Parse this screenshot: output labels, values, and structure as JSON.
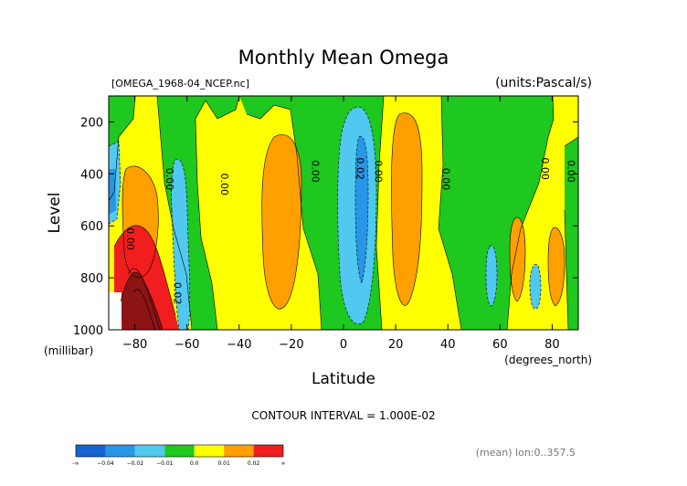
{
  "chart_data": {
    "type": "heatmap",
    "title": "Monthly Mean Omega",
    "file_label": "[OMEGA_1968-04_NCEP.nc]",
    "units_label": "(units:Pascal/s)",
    "xlabel": "Latitude",
    "xunits": "(degrees_north)",
    "ylabel": "Level",
    "yunits": "(millibar)",
    "xlim": [
      -90,
      90
    ],
    "ylim": [
      1000,
      100
    ],
    "x_ticks": [
      -80,
      -60,
      -40,
      -20,
      0,
      20,
      40,
      60,
      80
    ],
    "x_tick_labels": [
      "−80",
      "−60",
      "−40",
      "−20",
      "0",
      "20",
      "40",
      "60",
      "80"
    ],
    "y_ticks": [
      200,
      400,
      600,
      800,
      1000
    ],
    "y_tick_labels": [
      "200",
      "400",
      "600",
      "800",
      "1000"
    ],
    "contour_interval_label": "CONTOUR INTERVAL = 1.000E-02",
    "footer_label": "(mean) lon:0..357.5",
    "contour_line_labels": [
      {
        "text": "0.00",
        "lat": -68,
        "level": 420
      },
      {
        "text": "0.00",
        "lat": -47,
        "level": 440
      },
      {
        "text": "0.00",
        "lat": -12,
        "level": 390
      },
      {
        "text": "0.02",
        "lat": 5,
        "level": 380
      },
      {
        "text": "0.00",
        "lat": 12,
        "level": 390
      },
      {
        "text": "0.00",
        "lat": 38,
        "level": 420
      },
      {
        "text": "0.00",
        "lat": 76,
        "level": 380
      },
      {
        "text": "0.00",
        "lat": 86,
        "level": 390
      },
      {
        "text": "0.00",
        "lat": -83,
        "level": 650
      },
      {
        "text": "0.02",
        "lat": -65,
        "level": 860
      }
    ],
    "colorbar": {
      "colors": [
        "#1464d2",
        "#2896e6",
        "#50c8f0",
        "#1ec81e",
        "#ffff00",
        "#ffa000",
        "#f01e1e"
      ],
      "labels": [
        "-∞",
        "−0.04",
        "−0.02",
        "−0.01",
        "0.0",
        "0.01",
        "0.02",
        "∞"
      ]
    },
    "bands": [
      {
        "level": "0.00 to 0.01",
        "color": "#ffff00",
        "region": "background"
      },
      {
        "level": "-0.01 to 0.00",
        "color": "#1ec81e",
        "region": "mid-latitude and polar bands"
      },
      {
        "level": "0.01 to 0.02",
        "color": "#ffa000",
        "region": "ascent cells near -80, -28, 25, 60, 83"
      },
      {
        "level": "-0.02 to -0.01",
        "color": "#50c8f0",
        "region": "subsidence near -85, -63, 5, 55, 70"
      },
      {
        "level": "-0.04 to -0.02",
        "color": "#2896e6",
        "region": "core near 5N"
      },
      {
        "level": "> 0.02",
        "color": "#f01e1e",
        "region": "near -80 to -70, 650-1000 mb"
      },
      {
        "level": "high > 0.05",
        "color": "#8c1414",
        "region": "near -80, 800-1000 mb"
      }
    ]
  }
}
